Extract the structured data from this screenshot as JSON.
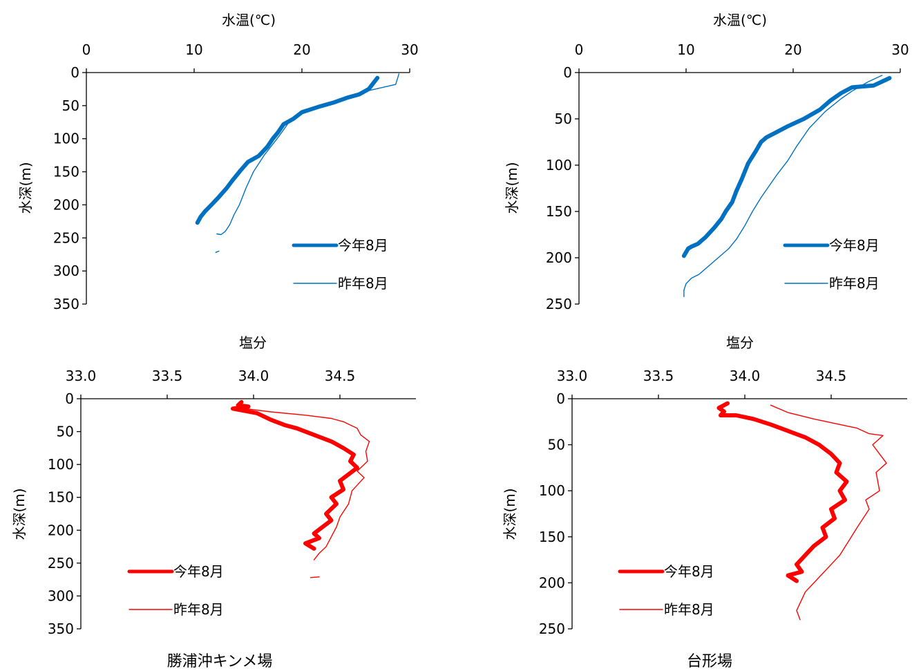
{
  "colors": {
    "temperature": "#0070C0",
    "salinity": "#FF0000",
    "axis": "#000000"
  },
  "legend": {
    "this_year": "今年8月",
    "last_year": "昨年8月"
  },
  "captions": {
    "left": "勝浦沖キンメ場",
    "right": "台形場"
  },
  "chart_data": [
    {
      "id": "temp_left",
      "type": "line",
      "xlabel": "水温(℃)",
      "ylabel": "水深(m)",
      "xlim": [
        0,
        30
      ],
      "xticks": [
        0,
        10,
        20,
        30
      ],
      "ylim": [
        0,
        350
      ],
      "yticks": [
        0,
        50,
        100,
        150,
        200,
        250,
        300,
        350
      ],
      "series": [
        {
          "name": "今年8月",
          "style": "thick",
          "x": [
            27.0,
            26.2,
            25.3,
            24.2,
            23.0,
            21.5,
            20.0,
            19.2,
            18.3,
            17.8,
            17.3,
            16.8,
            16.0,
            15.0,
            14.3,
            13.6,
            13.0,
            12.3,
            11.6,
            11.0,
            10.6,
            10.3
          ],
          "y": [
            8,
            25,
            33,
            38,
            45,
            52,
            60,
            70,
            78,
            90,
            100,
            112,
            126,
            135,
            148,
            162,
            175,
            188,
            200,
            210,
            218,
            227
          ]
        },
        {
          "name": "昨年8月",
          "style": "thin",
          "x": [
            29.0,
            28.7,
            26.0,
            24.7,
            22.0,
            20.0,
            19.0,
            18.5,
            17.7,
            16.5,
            15.5,
            14.8,
            14.2,
            13.7,
            13.3,
            12.9,
            12.5,
            12.1
          ],
          "y": [
            2,
            18,
            28,
            35,
            48,
            60,
            70,
            82,
            100,
            125,
            150,
            175,
            200,
            215,
            230,
            240,
            245,
            244
          ]
        },
        {
          "name": "",
          "style": "thin",
          "x": [
            12.0,
            12.3
          ],
          "y": [
            272,
            270
          ]
        }
      ]
    },
    {
      "id": "temp_right",
      "type": "line",
      "xlabel": "水温(℃)",
      "ylabel": "水深(m)",
      "xlim": [
        0,
        30
      ],
      "xticks": [
        0,
        10,
        20,
        30
      ],
      "ylim": [
        0,
        250
      ],
      "yticks": [
        0,
        50,
        100,
        150,
        200,
        250
      ],
      "series": [
        {
          "name": "今年8月",
          "style": "thick",
          "x": [
            29.0,
            27.5,
            25.5,
            24.5,
            23.5,
            22.5,
            21.0,
            19.5,
            18.5,
            17.5,
            17.0,
            16.5,
            15.8,
            15.2,
            14.7,
            14.3,
            13.7,
            13.3,
            12.6,
            11.8,
            11.1,
            10.5,
            10.2,
            9.8
          ],
          "y": [
            6,
            14,
            16,
            22,
            30,
            40,
            50,
            58,
            64,
            70,
            75,
            85,
            98,
            115,
            128,
            140,
            150,
            158,
            168,
            178,
            185,
            188,
            190,
            198
          ]
        },
        {
          "name": "昨年8月",
          "style": "thin",
          "x": [
            28.3,
            27.0,
            25.5,
            24.5,
            23.0,
            21.5,
            20.3,
            19.5,
            18.5,
            17.0,
            16.2,
            15.5,
            14.7,
            14.0,
            13.0,
            12.0,
            11.2,
            10.5,
            10.0,
            9.8,
            9.8
          ],
          "y": [
            3,
            10,
            20,
            28,
            42,
            60,
            80,
            95,
            110,
            135,
            150,
            165,
            180,
            190,
            200,
            210,
            218,
            222,
            228,
            235,
            242
          ]
        }
      ]
    },
    {
      "id": "sal_left",
      "type": "line",
      "xlabel": "塩分",
      "ylabel": "水深(m)",
      "xlim": [
        33.0,
        35.0
      ],
      "xticks": [
        33.0,
        33.5,
        34.0,
        34.5
      ],
      "ylim": [
        0,
        350
      ],
      "yticks": [
        0,
        50,
        100,
        150,
        200,
        250,
        300,
        350
      ],
      "series": [
        {
          "name": "今年8月",
          "style": "thick",
          "x": [
            33.93,
            33.91,
            33.97,
            33.88,
            34.02,
            34.1,
            34.18,
            34.25,
            34.35,
            34.45,
            34.52,
            34.58,
            34.56,
            34.6,
            34.55,
            34.5,
            34.52,
            34.45,
            34.48,
            34.42,
            34.45,
            34.4,
            34.35,
            34.38,
            34.3,
            34.35
          ],
          "y": [
            5,
            10,
            12,
            15,
            22,
            32,
            40,
            45,
            55,
            65,
            75,
            85,
            95,
            105,
            115,
            125,
            138,
            150,
            160,
            175,
            185,
            195,
            205,
            212,
            220,
            228
          ]
        },
        {
          "name": "昨年8月",
          "style": "thin",
          "x": [
            33.95,
            34.1,
            34.3,
            34.45,
            34.52,
            34.6,
            34.62,
            34.67,
            34.65,
            34.66,
            34.6,
            34.64,
            34.57,
            34.55,
            34.5,
            34.48,
            34.45,
            34.42,
            34.38,
            34.35
          ],
          "y": [
            15,
            20,
            25,
            30,
            35,
            45,
            55,
            65,
            80,
            95,
            110,
            120,
            140,
            160,
            180,
            195,
            210,
            225,
            235,
            245
          ]
        },
        {
          "name": "",
          "style": "thin",
          "x": [
            34.33,
            34.38
          ],
          "y": [
            272,
            271
          ]
        }
      ]
    },
    {
      "id": "sal_right",
      "type": "line",
      "xlabel": "塩分",
      "ylabel": "水深(m)",
      "xlim": [
        33.0,
        35.0
      ],
      "xticks": [
        33.0,
        33.5,
        34.0,
        34.5
      ],
      "ylim": [
        0,
        250
      ],
      "yticks": [
        0,
        50,
        100,
        150,
        200,
        250
      ],
      "series": [
        {
          "name": "今年8月",
          "style": "thick",
          "x": [
            33.9,
            33.85,
            33.88,
            33.86,
            33.95,
            34.05,
            34.15,
            34.25,
            34.35,
            34.43,
            34.5,
            34.55,
            34.53,
            34.59,
            34.55,
            34.58,
            34.5,
            34.52,
            34.45,
            34.47,
            34.4,
            34.35,
            34.3,
            34.33,
            34.25,
            34.3
          ],
          "y": [
            5,
            10,
            14,
            18,
            18,
            22,
            28,
            35,
            42,
            50,
            60,
            70,
            80,
            90,
            100,
            110,
            120,
            130,
            140,
            150,
            160,
            170,
            180,
            188,
            192,
            198
          ]
        },
        {
          "name": "昨年8月",
          "style": "thin",
          "x": [
            34.15,
            34.25,
            34.4,
            34.55,
            34.65,
            34.72,
            34.8,
            34.74,
            34.82,
            34.76,
            34.78,
            34.7,
            34.72,
            34.65,
            34.6,
            34.55,
            34.5,
            34.45,
            34.4,
            34.35,
            34.3,
            34.32
          ],
          "y": [
            7,
            15,
            22,
            28,
            32,
            38,
            40,
            50,
            70,
            80,
            100,
            110,
            120,
            140,
            155,
            170,
            180,
            190,
            200,
            210,
            230,
            240
          ]
        }
      ]
    }
  ]
}
